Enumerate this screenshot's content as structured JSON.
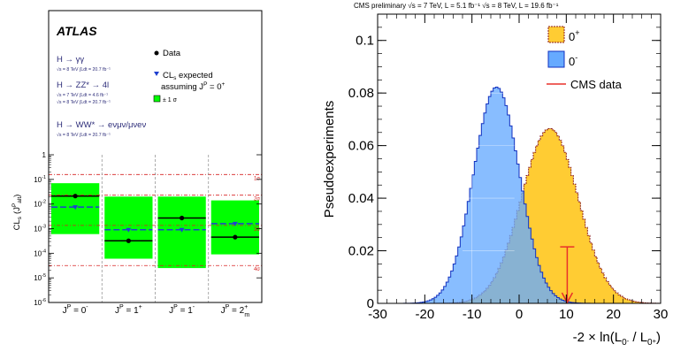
{
  "chart_data": [
    {
      "type": "scatter",
      "brand": "ATLAS",
      "ylabel_main": "CL",
      "ylabel_sub": "s",
      "ylabel_tail": "(J",
      "ylabel_sup": "P",
      "ylabel_sub2": "alt",
      "ylabel_close": ")",
      "yscale": "log",
      "ylim": [
        1e-06,
        1
      ],
      "yticks": [
        {
          "v": 1e-06,
          "base": "10",
          "exp": "-6"
        },
        {
          "v": 1e-05,
          "base": "10",
          "exp": "-5"
        },
        {
          "v": 0.0001,
          "base": "10",
          "exp": "-4"
        },
        {
          "v": 0.001,
          "base": "10",
          "exp": "-3"
        },
        {
          "v": 0.01,
          "base": "10",
          "exp": "-2"
        },
        {
          "v": 0.1,
          "base": "10",
          "exp": "-1"
        },
        {
          "v": 1,
          "base": "1",
          "exp": ""
        }
      ],
      "sigma_lines": [
        {
          "label": "1σ",
          "value": 0.158
        },
        {
          "label": "2σ",
          "value": 0.0228
        },
        {
          "label": "3σ",
          "value": 0.00135
        },
        {
          "label": "4σ",
          "value": 3.17e-05
        }
      ],
      "categories": [
        {
          "pre": "J",
          "sup": "P",
          "post": " = 0",
          "csup": "-",
          "csub": ""
        },
        {
          "pre": "J",
          "sup": "P",
          "post": " = 1",
          "csup": "+",
          "csub": ""
        },
        {
          "pre": "J",
          "sup": "P",
          "post": " = 1",
          "csup": "-",
          "csub": ""
        },
        {
          "pre": "J",
          "sup": "P",
          "post": " = 2",
          "csup": "+",
          "csub": "m"
        }
      ],
      "data_points": [
        0.021,
        0.00032,
        0.0027,
        0.00045
      ],
      "expected_points": [
        0.0075,
        0.0009,
        0.0009,
        0.0016
      ],
      "band_low": [
        0.0006,
        6e-05,
        2.5e-05,
        9e-05
      ],
      "band_high": [
        0.07,
        0.02,
        0.02,
        0.014
      ],
      "legend": {
        "data": "Data",
        "expected_l1": "CL",
        "expected_l1_sub": "s",
        "expected_l1_tail": " expected",
        "expected_l2": "assuming J",
        "expected_l2_sup": "P",
        "expected_l2_tail": " = 0",
        "expected_l2_sup2": "+",
        "band": "± 1 σ"
      },
      "channels": [
        {
          "name": "H → γγ",
          "lumi": [
            "√s = 8 TeV ∫Ldt = 20.7 fb⁻¹"
          ]
        },
        {
          "name": "H → ZZ* → 4l",
          "lumi": [
            "√s = 7 TeV ∫Ldt = 4.6 fb⁻¹",
            "√s = 8 TeV ∫Ldt = 20.7 fb⁻¹"
          ]
        },
        {
          "name": "H → WW* → eνμν/μνeν",
          "lumi": [
            "√s = 8 TeV ∫Ldt = 20.7 fb⁻¹"
          ]
        }
      ],
      "colors": {
        "band": "#00ff00",
        "data": "#000000",
        "expected": "#1f3fcf",
        "sigma": "#d62020",
        "channel_text": "#2e2e7a"
      }
    },
    {
      "type": "area",
      "header": "CMS preliminary    √s = 7 TeV, L = 5.1 fb⁻¹  √s = 8 TeV, L = 19.6 fb⁻¹",
      "ylabel": "Pseudoexperiments",
      "xlabel_pre": "-2 × ln(L",
      "xlabel_sub1": "0",
      "xlabel_sub1_sup": "-",
      "xlabel_mid": " / L",
      "xlabel_sub2": "0",
      "xlabel_sub2_sup": "+",
      "xlabel_close": ")",
      "xlim": [
        -30,
        30
      ],
      "ylim": [
        0,
        0.11
      ],
      "xticks": [
        -30,
        -20,
        -10,
        0,
        10,
        20,
        30
      ],
      "yticks": [
        0,
        0.02,
        0.04,
        0.06,
        0.08,
        0.1
      ],
      "ytick_labels": [
        "0",
        "0.02",
        "0.04",
        "0.06",
        "0.08",
        "0.1"
      ],
      "series": [
        {
          "name": "0",
          "name_sup": "+",
          "mean": 6.5,
          "sigma": 6.0,
          "color": "#ffcc33",
          "edge": "#8b1a1a"
        },
        {
          "name": "0",
          "name_sup": "-",
          "mean": -4.8,
          "sigma": 4.85,
          "color": "#66aaff",
          "edge": "#1030c0"
        }
      ],
      "cms_data": {
        "name": "CMS data",
        "x": 10.2,
        "y_top": 0.0215,
        "color": "#e8302a"
      },
      "grid": true,
      "legend_position": "top-right"
    }
  ]
}
